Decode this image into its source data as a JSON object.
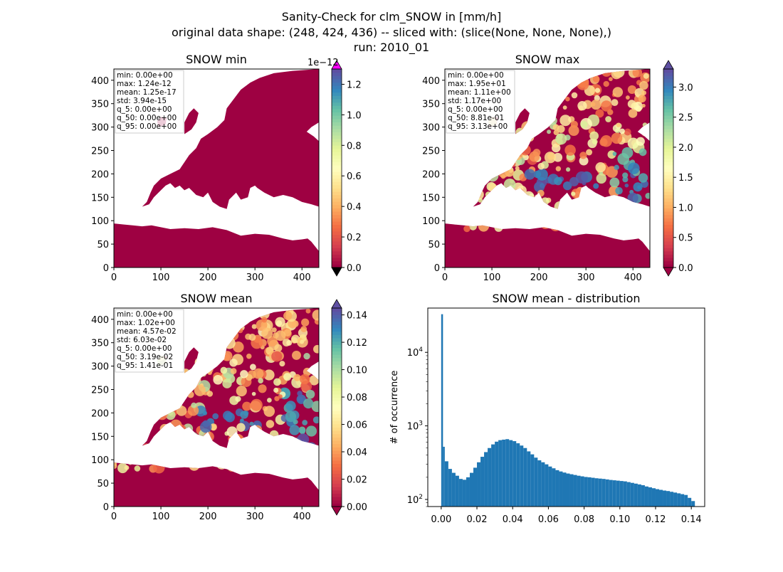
{
  "figure": {
    "title_lines": [
      "Sanity-Check for clm_SNOW in [mm/h]",
      "original data shape: (248, 424, 436) -- sliced with: (slice(None, None, None),)",
      "run: 2010_01"
    ]
  },
  "colors": {
    "land_low": "#9e0142",
    "land_mid": "#fdbf6f",
    "land_high": "#5e4fa2",
    "colorbar_over_min": "#ff00ff",
    "colorbar_under": "#000000",
    "histogram_bar": "#1f77b4",
    "spectral_colormap": [
      "#9e0142",
      "#d53e4f",
      "#f46d43",
      "#fdae61",
      "#fee08b",
      "#ffffbf",
      "#e6f598",
      "#abdda4",
      "#66c2a5",
      "#3288bd",
      "#5e4fa2"
    ]
  },
  "chart_data": [
    {
      "type": "heatmap",
      "title": "SNOW min",
      "xlim": [
        0,
        436
      ],
      "ylim": [
        0,
        424
      ],
      "x_ticks": [
        "0",
        "100",
        "200",
        "300",
        "400"
      ],
      "y_ticks": [
        "0",
        "50",
        "100",
        "150",
        "200",
        "250",
        "300",
        "350",
        "400"
      ],
      "colorbar": {
        "range": [
          0,
          1.3
        ],
        "ticks": [
          "0.0",
          "0.2",
          "0.4",
          "0.6",
          "0.8",
          "1.0",
          "1.2"
        ],
        "offset_label": "1e−12",
        "extend": "both"
      },
      "stats": [
        "min: 0.00e+00",
        "max: 1.24e-12",
        "mean: 1.25e-17",
        "std: 3.94e-15",
        "q_5: 0.00e+00",
        "q_50: 0.00e+00",
        "q_95: 0.00e+00"
      ],
      "intensity": "uniform-low"
    },
    {
      "type": "heatmap",
      "title": "SNOW max",
      "xlim": [
        0,
        436
      ],
      "ylim": [
        0,
        424
      ],
      "x_ticks": [
        "0",
        "100",
        "200",
        "300",
        "400"
      ],
      "y_ticks": [
        "0",
        "50",
        "100",
        "150",
        "200",
        "250",
        "300",
        "350",
        "400"
      ],
      "colorbar": {
        "range": [
          0,
          3.3
        ],
        "ticks": [
          "0.0",
          "0.5",
          "1.0",
          "1.5",
          "2.0",
          "2.5",
          "3.0"
        ],
        "offset_label": "",
        "extend": "both"
      },
      "stats": [
        "min: 0.00e+00",
        "max: 1.95e+01",
        "mean: 1.11e+00",
        "std: 1.17e+00",
        "q_5: 0.00e+00",
        "q_50: 8.81e-01",
        "q_95: 3.13e+00"
      ],
      "intensity": "varied"
    },
    {
      "type": "heatmap",
      "title": "SNOW mean",
      "xlim": [
        0,
        436
      ],
      "ylim": [
        0,
        424
      ],
      "x_ticks": [
        "0",
        "100",
        "200",
        "300",
        "400"
      ],
      "y_ticks": [
        "0",
        "50",
        "100",
        "150",
        "200",
        "250",
        "300",
        "350",
        "400"
      ],
      "colorbar": {
        "range": [
          0,
          0.145
        ],
        "ticks": [
          "0.00",
          "0.02",
          "0.04",
          "0.06",
          "0.08",
          "0.10",
          "0.12",
          "0.14"
        ],
        "offset_label": "",
        "extend": "both"
      },
      "stats": [
        "min: 0.00e+00",
        "max: 1.02e+00",
        "mean: 4.57e-02",
        "std: 6.03e-02",
        "q_5: 0.00e+00",
        "q_50: 3.19e-02",
        "q_95: 1.41e-01"
      ],
      "intensity": "varied"
    },
    {
      "type": "bar",
      "title": "SNOW mean - distribution",
      "xlabel": "",
      "ylabel": "# of occurrence",
      "xlim": [
        -0.0075,
        0.1475
      ],
      "ylim": [
        80,
        40000
      ],
      "yscale": "log",
      "x_ticks": [
        "0.00",
        "0.02",
        "0.04",
        "0.06",
        "0.08",
        "0.10",
        "0.12",
        "0.14"
      ],
      "y_ticks": [
        {
          "base": "10",
          "exp": "2",
          "value": 100
        },
        {
          "base": "10",
          "exp": "3",
          "value": 1000
        },
        {
          "base": "10",
          "exp": "4",
          "value": 10000
        }
      ],
      "bins": {
        "x": [
          0.0,
          0.001,
          0.002,
          0.004,
          0.006,
          0.008,
          0.01,
          0.012,
          0.014,
          0.016,
          0.018,
          0.02,
          0.022,
          0.024,
          0.026,
          0.028,
          0.03,
          0.032,
          0.034,
          0.036,
          0.038,
          0.04,
          0.042,
          0.044,
          0.046,
          0.048,
          0.05,
          0.052,
          0.054,
          0.056,
          0.058,
          0.06,
          0.062,
          0.064,
          0.066,
          0.068,
          0.07,
          0.072,
          0.074,
          0.076,
          0.078,
          0.08,
          0.082,
          0.084,
          0.086,
          0.088,
          0.09,
          0.092,
          0.094,
          0.096,
          0.098,
          0.1,
          0.102,
          0.104,
          0.106,
          0.108,
          0.11,
          0.112,
          0.114,
          0.116,
          0.118,
          0.12,
          0.122,
          0.124,
          0.126,
          0.128,
          0.13,
          0.132,
          0.134,
          0.136,
          0.138,
          0.14
        ],
        "counts": [
          33000,
          520,
          330,
          260,
          230,
          210,
          190,
          185,
          200,
          230,
          270,
          320,
          380,
          440,
          500,
          560,
          610,
          640,
          650,
          660,
          640,
          620,
          580,
          540,
          500,
          450,
          410,
          370,
          340,
          320,
          300,
          280,
          265,
          250,
          240,
          232,
          225,
          220,
          215,
          210,
          206,
          202,
          200,
          197,
          194,
          192,
          190,
          187,
          184,
          182,
          180,
          178,
          176,
          172,
          168,
          164,
          160,
          156,
          150,
          146,
          142,
          138,
          135,
          132,
          130,
          127,
          124,
          121,
          118,
          115,
          105,
          95
        ]
      }
    }
  ]
}
